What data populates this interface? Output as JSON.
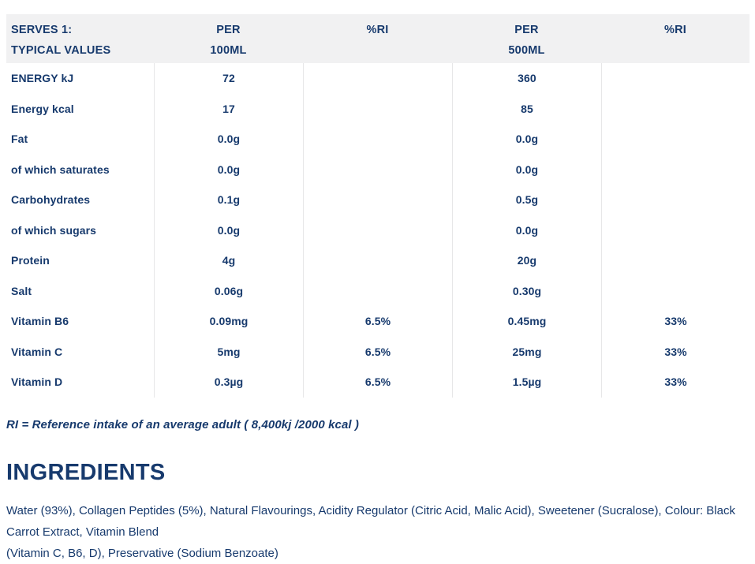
{
  "colors": {
    "text_navy": "#173a6d",
    "header_bg": "#f1f1f2",
    "divider": "#e7e7e8"
  },
  "table": {
    "header": {
      "col1": [
        "SERVES 1:",
        "TYPICAL VALUES"
      ],
      "col2": [
        "PER",
        "100ML"
      ],
      "col3": [
        "%RI",
        ""
      ],
      "col4": [
        "PER",
        "500ML"
      ],
      "col5": [
        "%RI",
        ""
      ]
    },
    "rows": [
      {
        "label": "ENERGY kJ",
        "per100": "72",
        "ri100": "",
        "per500": "360",
        "ri500": ""
      },
      {
        "label": "Energy kcal",
        "per100": "17",
        "ri100": "",
        "per500": "85",
        "ri500": ""
      },
      {
        "label": "Fat",
        "per100": "0.0g",
        "ri100": "",
        "per500": "0.0g",
        "ri500": ""
      },
      {
        "label": "of which saturates",
        "per100": "0.0g",
        "ri100": "",
        "per500": "0.0g",
        "ri500": ""
      },
      {
        "label": "Carbohydrates",
        "per100": "0.1g",
        "ri100": "",
        "per500": "0.5g",
        "ri500": ""
      },
      {
        "label": "of which sugars",
        "per100": "0.0g",
        "ri100": "",
        "per500": "0.0g",
        "ri500": ""
      },
      {
        "label": "Protein",
        "per100": "4g",
        "ri100": "",
        "per500": "20g",
        "ri500": ""
      },
      {
        "label": "Salt",
        "per100": "0.06g",
        "ri100": "",
        "per500": "0.30g",
        "ri500": ""
      },
      {
        "label": "Vitamin B6",
        "per100": "0.09mg",
        "ri100": "6.5%",
        "per500": "0.45mg",
        "ri500": "33%"
      },
      {
        "label": "Vitamin C",
        "per100": "5mg",
        "ri100": "6.5%",
        "per500": "25mg",
        "ri500": "33%"
      },
      {
        "label": "Vitamin D",
        "per100": "0.3µg",
        "ri100": "6.5%",
        "per500": "1.5µg",
        "ri500": "33%"
      }
    ],
    "footnote": "RI = Reference intake of an average adult ( 8,400kj /2000 kcal )"
  },
  "ingredients": {
    "heading": "INGREDIENTS",
    "line1": "Water (93%), Collagen Peptides (5%), Natural Flavourings, Acidity Regulator (Citric Acid, Malic Acid), Sweetener (Sucralose), Colour: Black Carrot Extract, Vitamin Blend",
    "line2": "(Vitamin C, B6, D), Preservative (Sodium Benzoate)"
  }
}
